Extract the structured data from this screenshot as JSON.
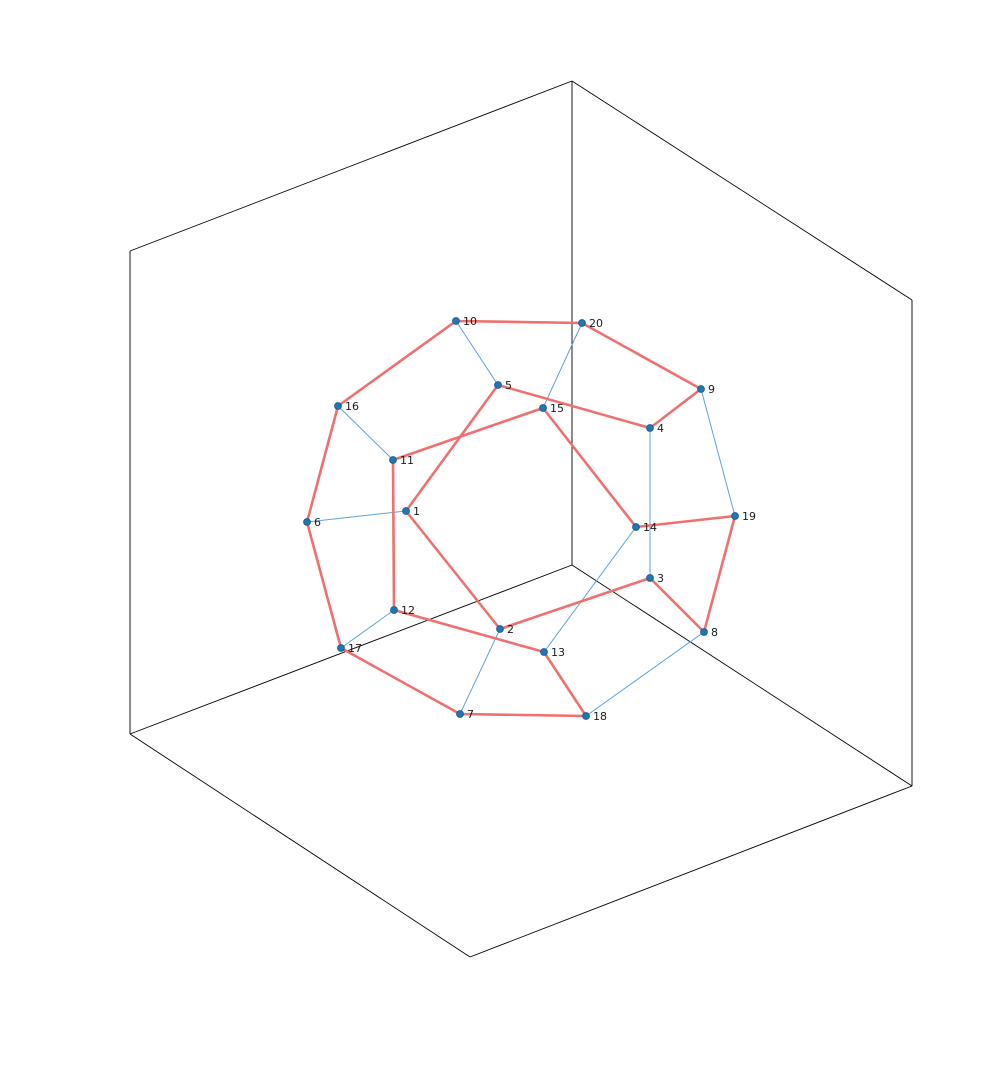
{
  "colors": {
    "background": "#ffffff",
    "box": "#000000",
    "path_edge": "#f06f6f",
    "other_edge": "#5fa2d6",
    "node": "#1f77b4"
  },
  "graph": {
    "nodes": [
      {
        "id": "1",
        "label": "1"
      },
      {
        "id": "2",
        "label": "2"
      },
      {
        "id": "3",
        "label": "3"
      },
      {
        "id": "4",
        "label": "4"
      },
      {
        "id": "5",
        "label": "5"
      },
      {
        "id": "6",
        "label": "6"
      },
      {
        "id": "7",
        "label": "7"
      },
      {
        "id": "8",
        "label": "8"
      },
      {
        "id": "9",
        "label": "9"
      },
      {
        "id": "10",
        "label": "10"
      },
      {
        "id": "11",
        "label": "11"
      },
      {
        "id": "12",
        "label": "12"
      },
      {
        "id": "13",
        "label": "13"
      },
      {
        "id": "14",
        "label": "14"
      },
      {
        "id": "15",
        "label": "15"
      },
      {
        "id": "16",
        "label": "16"
      },
      {
        "id": "17",
        "label": "17"
      },
      {
        "id": "18",
        "label": "18"
      },
      {
        "id": "19",
        "label": "19"
      },
      {
        "id": "20",
        "label": "20"
      }
    ],
    "highlighted_edges": [
      [
        "10",
        "20"
      ],
      [
        "20",
        "9"
      ],
      [
        "9",
        "4"
      ],
      [
        "4",
        "5"
      ],
      [
        "5",
        "1"
      ],
      [
        "1",
        "2"
      ],
      [
        "2",
        "3"
      ],
      [
        "3",
        "8"
      ],
      [
        "8",
        "19"
      ],
      [
        "19",
        "14"
      ],
      [
        "14",
        "15"
      ],
      [
        "15",
        "11"
      ],
      [
        "11",
        "12"
      ],
      [
        "12",
        "13"
      ],
      [
        "13",
        "18"
      ],
      [
        "18",
        "7"
      ],
      [
        "7",
        "17"
      ],
      [
        "17",
        "6"
      ],
      [
        "6",
        "16"
      ],
      [
        "16",
        "10"
      ]
    ],
    "other_edges": [
      [
        "10",
        "5"
      ],
      [
        "20",
        "15"
      ],
      [
        "9",
        "19"
      ],
      [
        "4",
        "3"
      ],
      [
        "1",
        "6"
      ],
      [
        "2",
        "7"
      ],
      [
        "8",
        "18"
      ],
      [
        "14",
        "13"
      ],
      [
        "11",
        "16"
      ],
      [
        "12",
        "17"
      ]
    ]
  }
}
